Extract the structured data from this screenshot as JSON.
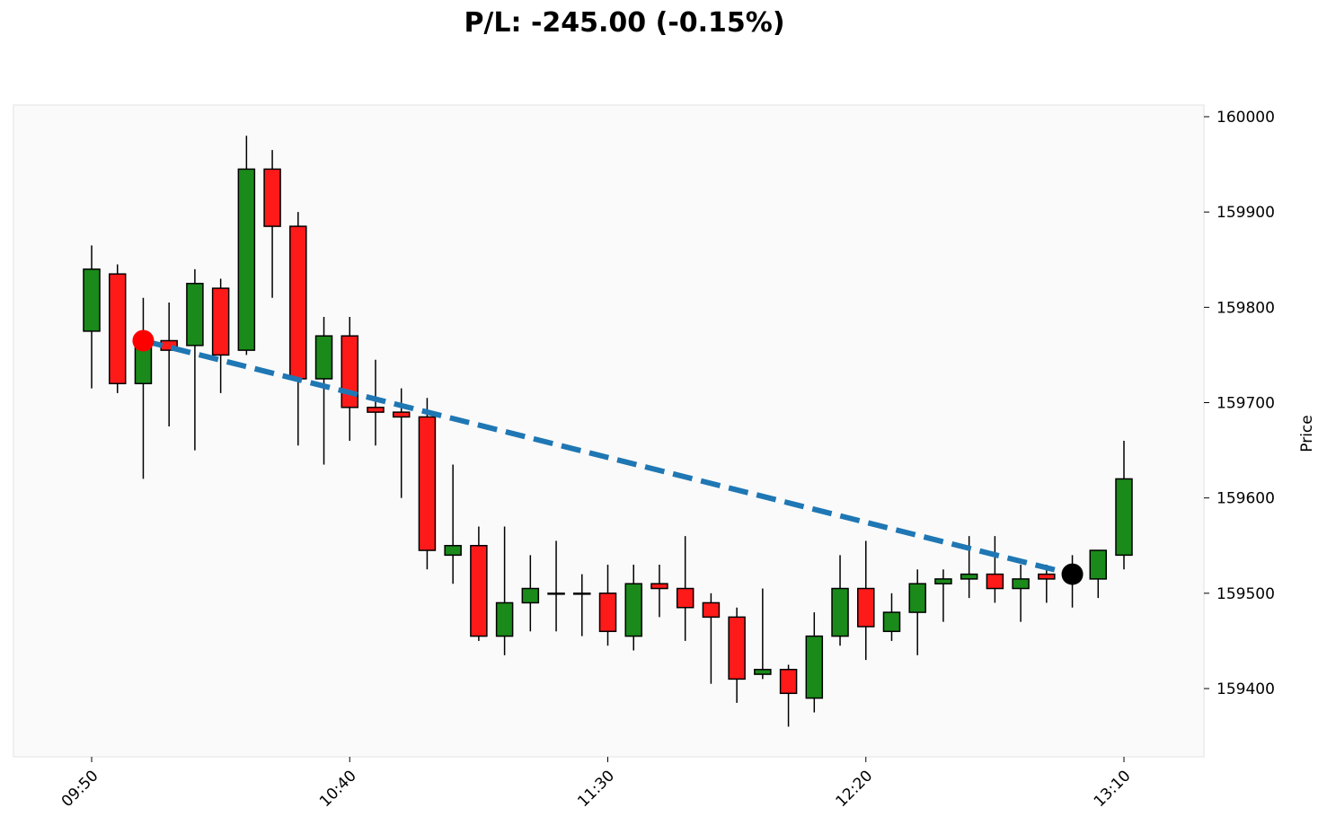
{
  "chart_data": {
    "type": "candlestick",
    "title": "P/L: -245.00 (-0.15%)",
    "ylabel": "Price",
    "xlabel": "",
    "ylim": [
      159335,
      160010
    ],
    "yticks": [
      159400,
      159500,
      159600,
      159700,
      159800,
      159900,
      160000
    ],
    "xticks": [
      "09:50",
      "10:40",
      "11:30",
      "12:20",
      "13:10"
    ],
    "interval_minutes": 5,
    "start_time": "09:50",
    "up_color": "#1a8a1a",
    "down_color": "#ff1a1a",
    "candles": [
      {
        "t": "09:50",
        "o": 159775,
        "h": 159865,
        "l": 159715,
        "c": 159840
      },
      {
        "t": "09:55",
        "o": 159835,
        "h": 159845,
        "l": 159710,
        "c": 159720
      },
      {
        "t": "10:00",
        "o": 159720,
        "h": 159810,
        "l": 159620,
        "c": 159765
      },
      {
        "t": "10:05",
        "o": 159765,
        "h": 159805,
        "l": 159675,
        "c": 159755
      },
      {
        "t": "10:10",
        "o": 159760,
        "h": 159840,
        "l": 159650,
        "c": 159825
      },
      {
        "t": "10:15",
        "o": 159820,
        "h": 159830,
        "l": 159710,
        "c": 159750
      },
      {
        "t": "10:20",
        "o": 159755,
        "h": 159980,
        "l": 159750,
        "c": 159945
      },
      {
        "t": "10:25",
        "o": 159945,
        "h": 159965,
        "l": 159810,
        "c": 159885
      },
      {
        "t": "10:30",
        "o": 159885,
        "h": 159900,
        "l": 159655,
        "c": 159725
      },
      {
        "t": "10:35",
        "o": 159725,
        "h": 159790,
        "l": 159635,
        "c": 159770
      },
      {
        "t": "10:40",
        "o": 159770,
        "h": 159790,
        "l": 159660,
        "c": 159695
      },
      {
        "t": "10:45",
        "o": 159695,
        "h": 159745,
        "l": 159655,
        "c": 159690
      },
      {
        "t": "10:50",
        "o": 159690,
        "h": 159715,
        "l": 159600,
        "c": 159685
      },
      {
        "t": "10:55",
        "o": 159685,
        "h": 159705,
        "l": 159525,
        "c": 159545
      },
      {
        "t": "11:00",
        "o": 159540,
        "h": 159635,
        "l": 159510,
        "c": 159550
      },
      {
        "t": "11:05",
        "o": 159550,
        "h": 159570,
        "l": 159450,
        "c": 159455
      },
      {
        "t": "11:10",
        "o": 159455,
        "h": 159570,
        "l": 159435,
        "c": 159490
      },
      {
        "t": "11:15",
        "o": 159490,
        "h": 159540,
        "l": 159460,
        "c": 159505
      },
      {
        "t": "11:20",
        "o": 159500,
        "h": 159555,
        "l": 159460,
        "c": 159500
      },
      {
        "t": "11:25",
        "o": 159500,
        "h": 159520,
        "l": 159455,
        "c": 159500
      },
      {
        "t": "11:30",
        "o": 159500,
        "h": 159530,
        "l": 159445,
        "c": 159460
      },
      {
        "t": "11:35",
        "o": 159455,
        "h": 159530,
        "l": 159440,
        "c": 159510
      },
      {
        "t": "11:40",
        "o": 159510,
        "h": 159530,
        "l": 159475,
        "c": 159505
      },
      {
        "t": "11:45",
        "o": 159505,
        "h": 159560,
        "l": 159450,
        "c": 159485
      },
      {
        "t": "11:50",
        "o": 159490,
        "h": 159500,
        "l": 159405,
        "c": 159475
      },
      {
        "t": "11:55",
        "o": 159475,
        "h": 159485,
        "l": 159385,
        "c": 159410
      },
      {
        "t": "12:00",
        "o": 159415,
        "h": 159505,
        "l": 159410,
        "c": 159420
      },
      {
        "t": "12:05",
        "o": 159420,
        "h": 159425,
        "l": 159360,
        "c": 159395
      },
      {
        "t": "12:10",
        "o": 159390,
        "h": 159480,
        "l": 159375,
        "c": 159455
      },
      {
        "t": "12:15",
        "o": 159455,
        "h": 159540,
        "l": 159445,
        "c": 159505
      },
      {
        "t": "12:20",
        "o": 159505,
        "h": 159555,
        "l": 159430,
        "c": 159465
      },
      {
        "t": "12:25",
        "o": 159460,
        "h": 159500,
        "l": 159450,
        "c": 159480
      },
      {
        "t": "12:30",
        "o": 159480,
        "h": 159525,
        "l": 159435,
        "c": 159510
      },
      {
        "t": "12:35",
        "o": 159510,
        "h": 159525,
        "l": 159470,
        "c": 159515
      },
      {
        "t": "12:40",
        "o": 159515,
        "h": 159560,
        "l": 159495,
        "c": 159520
      },
      {
        "t": "12:45",
        "o": 159520,
        "h": 159560,
        "l": 159490,
        "c": 159505
      },
      {
        "t": "12:50",
        "o": 159505,
        "h": 159530,
        "l": 159470,
        "c": 159515
      },
      {
        "t": "12:55",
        "o": 159520,
        "h": 159530,
        "l": 159490,
        "c": 159515
      },
      {
        "t": "13:00",
        "o": 159518,
        "h": 159540,
        "l": 159485,
        "c": 159522
      },
      {
        "t": "13:05",
        "o": 159515,
        "h": 159545,
        "l": 159495,
        "c": 159545
      },
      {
        "t": "13:10",
        "o": 159540,
        "h": 159660,
        "l": 159525,
        "c": 159620
      }
    ],
    "trade": {
      "entry": {
        "t": "10:00",
        "price": 159765,
        "color": "#ff0000"
      },
      "exit": {
        "t": "13:00",
        "price": 159520,
        "color": "#000000"
      },
      "line_color": "#1f77b4"
    }
  }
}
